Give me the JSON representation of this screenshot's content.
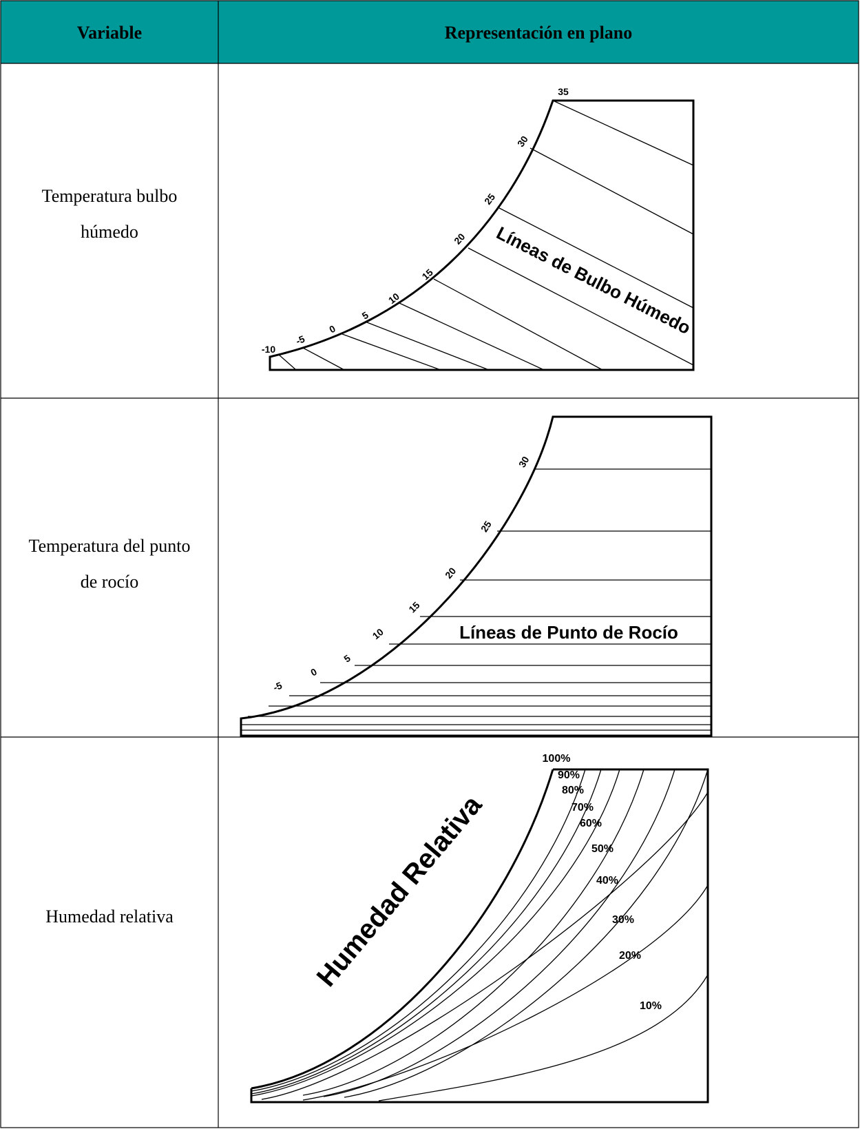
{
  "table": {
    "header": [
      "Variable",
      "Representación en plano"
    ],
    "rows": [
      {
        "variable": [
          "Temperatura bulbo",
          "húmedo"
        ],
        "diagram": {
          "title": "Líneas de Bulbo Húmedo",
          "labels": [
            "35",
            "30",
            "25",
            "20",
            "15",
            "10",
            "5",
            "0",
            "-5",
            "-10"
          ]
        }
      },
      {
        "variable": [
          "Temperatura del punto",
          "de rocío"
        ],
        "diagram": {
          "title": "Líneas de Punto de Rocío",
          "labels": [
            "30",
            "25",
            "20",
            "15",
            "10",
            "5",
            "0",
            "-5"
          ]
        }
      },
      {
        "variable": [
          "Humedad relativa"
        ],
        "diagram": {
          "title": "Humedad Relativa",
          "labels": [
            "100%",
            "90%",
            "80%",
            "70%",
            "60%",
            "50%",
            "40%",
            "30%",
            "20%",
            "10%"
          ]
        }
      }
    ]
  }
}
